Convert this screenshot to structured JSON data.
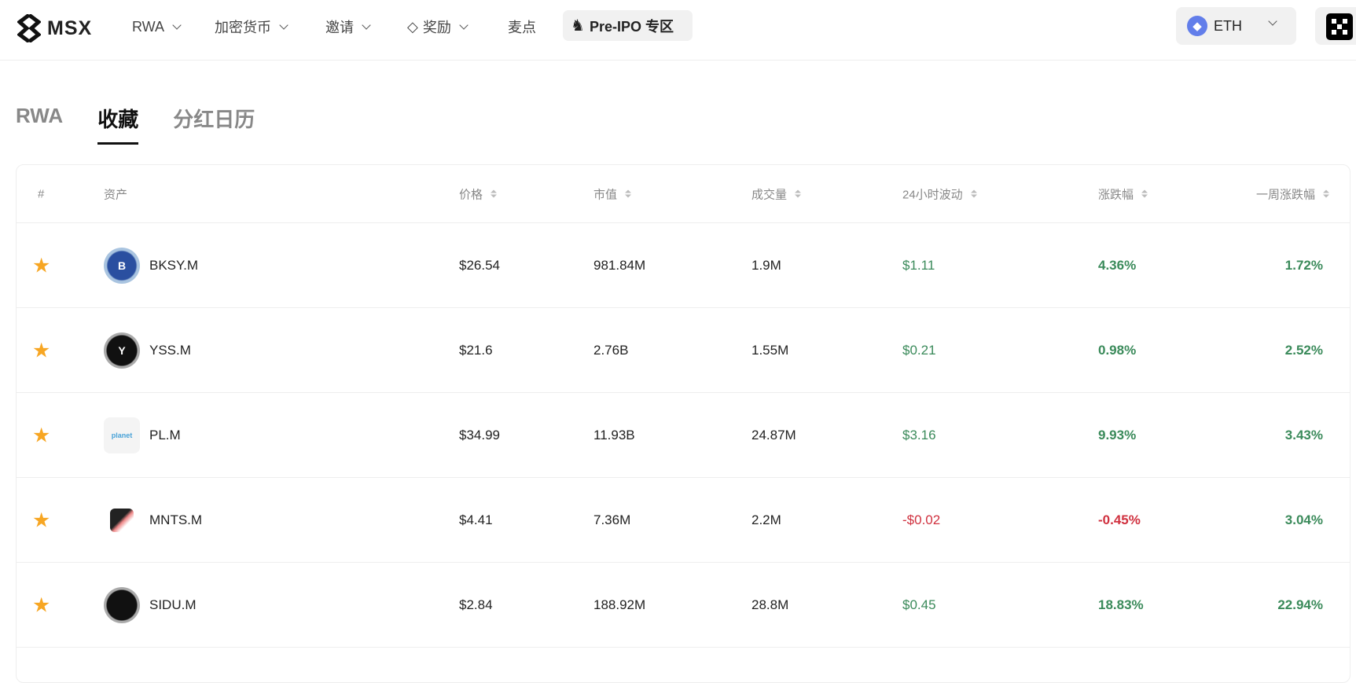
{
  "nav": {
    "logo": "MSX",
    "items": [
      {
        "label": "RWA",
        "dropdown": true
      },
      {
        "label": "加密货币",
        "dropdown": true
      },
      {
        "label": "邀请",
        "dropdown": true
      },
      {
        "label": "奖励",
        "dropdown": true,
        "icon": "diamond-icon"
      },
      {
        "label": "麦点",
        "dropdown": false
      }
    ],
    "preipo": "Pre-IPO 专区",
    "network": "ETH"
  },
  "tabs": [
    {
      "label": "RWA",
      "active": false
    },
    {
      "label": "收藏",
      "active": true
    },
    {
      "label": "分红日历",
      "active": false
    }
  ],
  "table": {
    "headers": [
      "#",
      "资产",
      "价格",
      "市值",
      "成交量",
      "24小时波动",
      "涨跌幅",
      "一周涨跌幅"
    ],
    "rows": [
      {
        "asset": "BKSY.M",
        "logo": "B",
        "price": "$26.54",
        "mcap": "981.84M",
        "volume": "1.9M",
        "change24": "$1.11",
        "pct": "4.36%",
        "week": "1.72%"
      },
      {
        "asset": "YSS.M",
        "logo": "Y",
        "price": "$21.6",
        "mcap": "2.76B",
        "volume": "1.55M",
        "change24": "$0.21",
        "pct": "0.98%",
        "week": "2.52%"
      },
      {
        "asset": "PL.M",
        "logo": "planet",
        "price": "$34.99",
        "mcap": "11.93B",
        "volume": "24.87M",
        "change24": "$3.16",
        "pct": "9.93%",
        "week": "3.43%"
      },
      {
        "asset": "MNTS.M",
        "logo": "",
        "price": "$4.41",
        "mcap": "7.36M",
        "volume": "2.2M",
        "change24": "-$0.02",
        "pct": "-0.45%",
        "week": "3.04%"
      },
      {
        "asset": "SIDU.M",
        "logo": "",
        "price": "$2.84",
        "mcap": "188.92M",
        "volume": "28.8M",
        "change24": "$0.45",
        "pct": "18.83%",
        "week": "22.94%"
      }
    ]
  },
  "colors": {
    "up": "#3a8a5a",
    "down": "#d0313f",
    "star": "#f7a623"
  }
}
